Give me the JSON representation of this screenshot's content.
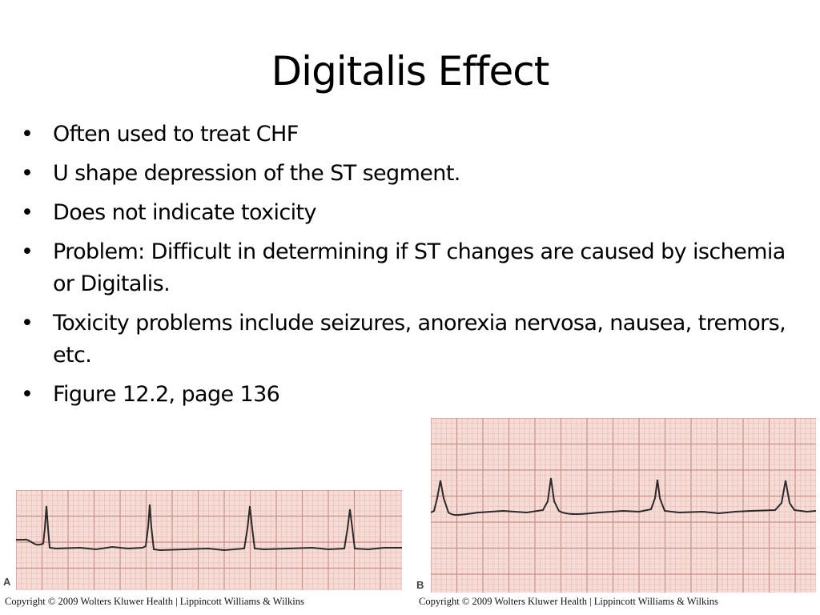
{
  "slide": {
    "title": "Digitalis Effect",
    "bullets": [
      {
        "marker": "•",
        "text": "Often used to treat CHF"
      },
      {
        "marker": "•",
        "text": "U shape depression of the ST segment."
      },
      {
        "marker": "•",
        "text": "Does not indicate toxicity"
      },
      {
        "marker": "•",
        "text": "Problem:  Difficult in determining if ST changes are caused by ischemia or Digitalis."
      },
      {
        "marker": "•",
        "text": "Toxicity problems include seizures, anorexia nervosa, nausea, tremors, etc."
      },
      {
        "marker": "•",
        "text": "Figure 12.2, page 136"
      }
    ]
  },
  "figures": {
    "strip_a": {
      "label": "A",
      "copyright": "Copyright © 2009 Wolters Kluwer Health | Lippincott Williams & Wilkins"
    },
    "strip_b": {
      "label": "B",
      "copyright": "Copyright © 2009 Wolters Kluwer Health | Lippincott Williams & Wilkins"
    }
  },
  "colors": {
    "ecg_paper": "#f6dcd6",
    "ecg_grid_minor": "#e8b7ae",
    "ecg_grid_major": "#c98f86",
    "ecg_trace": "#2a2a2a"
  }
}
